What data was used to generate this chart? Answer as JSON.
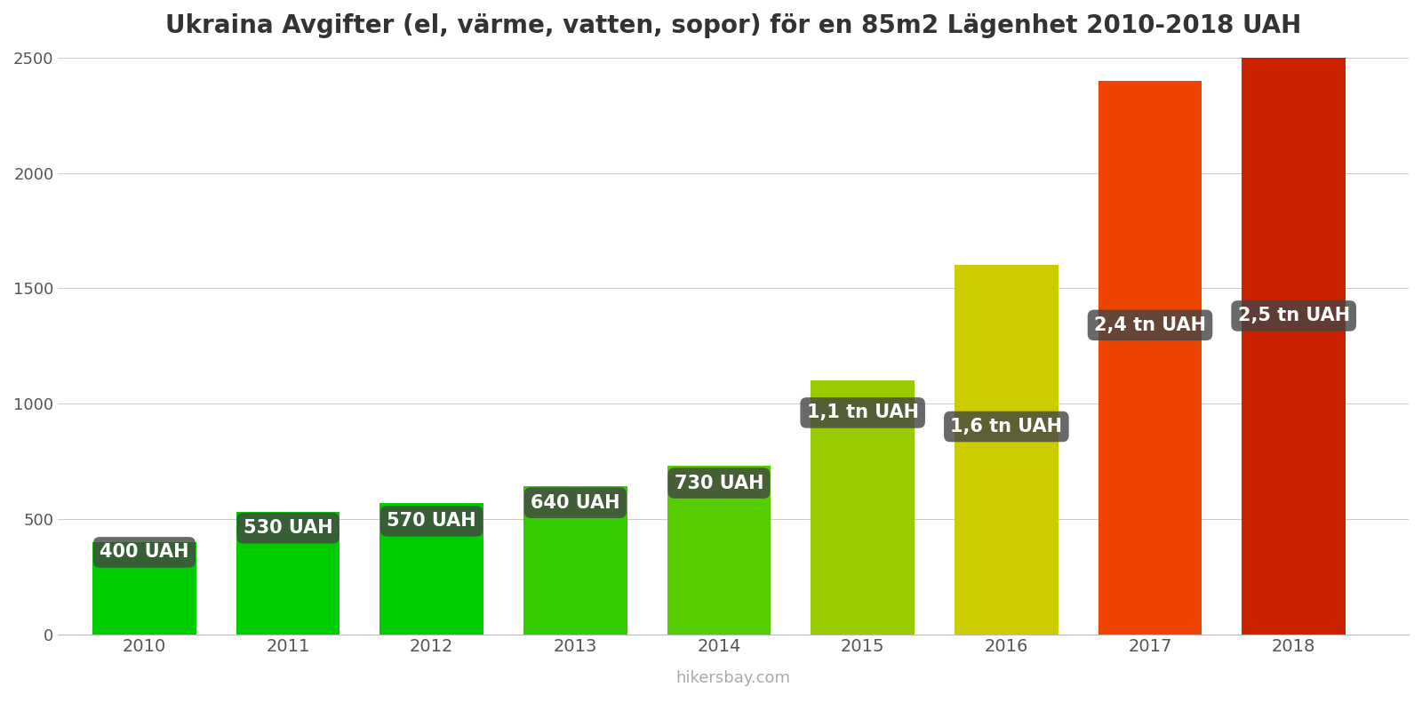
{
  "years": [
    2010,
    2011,
    2012,
    2013,
    2014,
    2015,
    2016,
    2017,
    2018
  ],
  "values": [
    400,
    530,
    570,
    640,
    730,
    1100,
    1600,
    2400,
    2500
  ],
  "bar_colors": [
    "#00cc00",
    "#00cc00",
    "#00cc00",
    "#33cc00",
    "#55cc00",
    "#99cc00",
    "#cccc00",
    "#ee4400",
    "#cc2200"
  ],
  "labels": [
    "400 UAH",
    "530 UAH",
    "570 UAH",
    "640 UAH",
    "730 UAH",
    "1,1 tn UAH",
    "1,6 tn UAH",
    "2,4 tn UAH",
    "2,5 tn UAH"
  ],
  "label_y_offsets": [
    355,
    460,
    490,
    570,
    655,
    960,
    900,
    1340,
    1380
  ],
  "title": "Ukraina Avgifter (el, värme, vatten, sopor) för en 85m2 Lägenhet 2010-2018 UAH",
  "ylim": [
    0,
    2500
  ],
  "yticks": [
    0,
    500,
    1000,
    1500,
    2000,
    2500
  ],
  "watermark": "hikersbay.com",
  "label_box_color": "#444444",
  "label_text_color": "#ffffff",
  "label_fontsize": 15,
  "title_fontsize": 20,
  "background_color": "#ffffff",
  "grid_color": "#cccccc",
  "bar_width": 0.72
}
